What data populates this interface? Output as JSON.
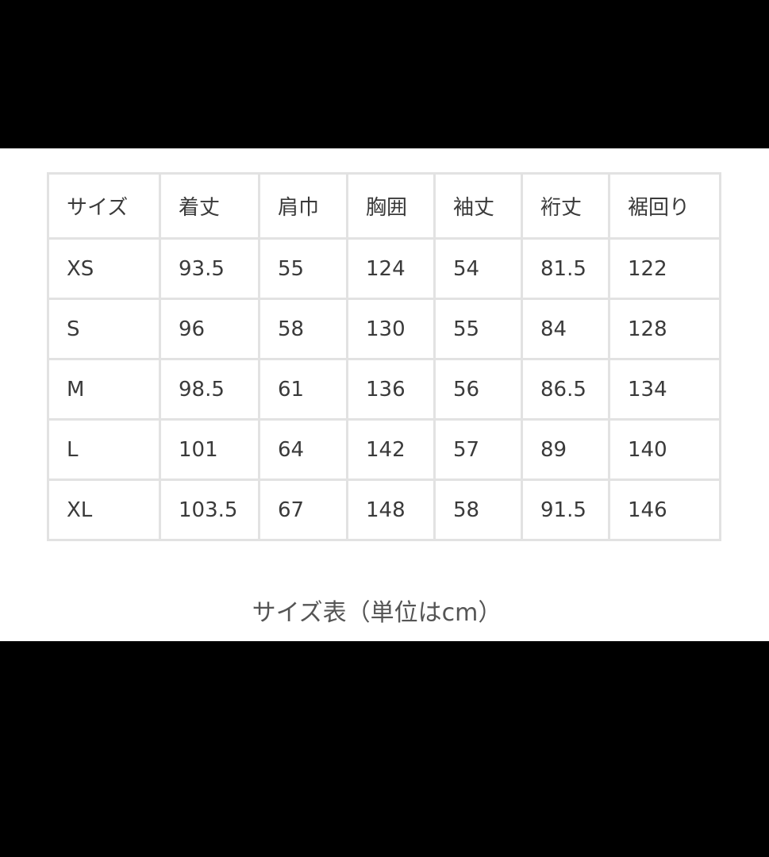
{
  "table": {
    "headers": [
      "サイズ",
      "着丈",
      "肩巾",
      "胸囲",
      "袖丈",
      "裄丈",
      "裾回り"
    ],
    "rows": [
      [
        "XS",
        "93.5",
        "55",
        "124",
        "54",
        "81.5",
        "122"
      ],
      [
        "S",
        "96",
        "58",
        "130",
        "55",
        "84",
        "128"
      ],
      [
        "M",
        "98.5",
        "61",
        "136",
        "56",
        "86.5",
        "134"
      ],
      [
        "L",
        "101",
        "64",
        "142",
        "57",
        "89",
        "140"
      ],
      [
        "XL",
        "103.5",
        "67",
        "148",
        "58",
        "91.5",
        "146"
      ]
    ]
  },
  "caption": "サイズ表（単位はcm）"
}
